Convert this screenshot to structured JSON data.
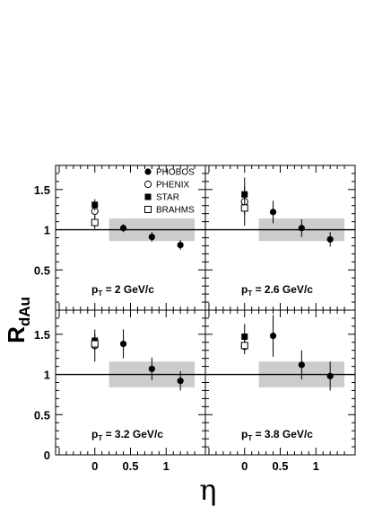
{
  "chart_data": {
    "type": "scatter",
    "ylabel": "R",
    "ylabel_sub": "dAu",
    "xlabel": "η",
    "xlim": [
      -0.55,
      1.55
    ],
    "ylim": [
      0,
      1.8
    ],
    "x_tick_labels": [
      "0",
      "0.5",
      "1"
    ],
    "y_tick_labels": [
      "0.5",
      "1",
      "1.5"
    ],
    "reference_line_y": 1,
    "legend": {
      "placement": "top-left panel, upper-right",
      "entries": [
        {
          "label": "PHOBOS",
          "marker": "filled-circle"
        },
        {
          "label": "PHENIX",
          "marker": "open-circle"
        },
        {
          "label": "STAR",
          "marker": "filled-square"
        },
        {
          "label": "BRAHMS",
          "marker": "open-square"
        }
      ]
    },
    "panels": [
      {
        "label_p": "p",
        "label_sub": "T",
        "label_rest": " = 2 GeV/c",
        "band": {
          "x": [
            0.2,
            1.4
          ],
          "y": [
            0.86,
            1.14
          ]
        },
        "series": [
          {
            "name": "PHOBOS",
            "points": [
              {
                "x": 0.4,
                "y": 1.02,
                "err": 0.05
              },
              {
                "x": 0.8,
                "y": 0.91,
                "err": 0.06
              },
              {
                "x": 1.2,
                "y": 0.81,
                "err": 0.06
              }
            ]
          },
          {
            "name": "PHENIX",
            "points": [
              {
                "x": 0,
                "y": 1.23,
                "err": 0.08
              }
            ]
          },
          {
            "name": "STAR",
            "points": [
              {
                "x": 0,
                "y": 1.31,
                "err": 0.07
              }
            ]
          },
          {
            "name": "BRAHMS",
            "points": [
              {
                "x": 0,
                "y": 1.09,
                "err": 0.08
              }
            ]
          }
        ]
      },
      {
        "label_p": "p",
        "label_sub": "T",
        "label_rest": " = 2.6 GeV/c",
        "band": {
          "x": [
            0.2,
            1.4
          ],
          "y": [
            0.86,
            1.14
          ]
        },
        "series": [
          {
            "name": "PHOBOS",
            "points": [
              {
                "x": 0.4,
                "y": 1.22,
                "err": 0.14
              },
              {
                "x": 0.8,
                "y": 1.02,
                "err": 0.11
              },
              {
                "x": 1.2,
                "y": 0.88,
                "err": 0.09
              }
            ]
          },
          {
            "name": "PHENIX",
            "points": [
              {
                "x": 0,
                "y": 1.35,
                "err": 0.3
              }
            ]
          },
          {
            "name": "STAR",
            "points": [
              {
                "x": 0,
                "y": 1.44,
                "err": 0.1
              }
            ]
          },
          {
            "name": "BRAHMS",
            "points": [
              {
                "x": 0,
                "y": 1.27,
                "err": 0.08
              }
            ]
          }
        ]
      },
      {
        "label_p": "p",
        "label_sub": "T",
        "label_rest": " = 3.2 GeV/c",
        "band": {
          "x": [
            0.2,
            1.4
          ],
          "y": [
            0.84,
            1.16
          ]
        },
        "series": [
          {
            "name": "PHOBOS",
            "points": [
              {
                "x": 0.4,
                "y": 1.38,
                "err": 0.18
              },
              {
                "x": 0.8,
                "y": 1.07,
                "err": 0.14
              },
              {
                "x": 1.2,
                "y": 0.92,
                "err": 0.12
              }
            ]
          },
          {
            "name": "PHENIX",
            "points": [
              {
                "x": 0,
                "y": 1.36,
                "err": 0.2
              }
            ]
          },
          {
            "name": "STAR",
            "points": [
              {
                "x": 0,
                "y": 1.42,
                "err": 0.08
              }
            ]
          },
          {
            "name": "BRAHMS",
            "points": [
              {
                "x": 0,
                "y": 1.38,
                "err": 0.07
              }
            ]
          }
        ]
      },
      {
        "label_p": "p",
        "label_sub": "T",
        "label_rest": " = 3.8 GeV/c",
        "band": {
          "x": [
            0.2,
            1.4
          ],
          "y": [
            0.84,
            1.16
          ]
        },
        "series": [
          {
            "name": "PHOBOS",
            "points": [
              {
                "x": 0.4,
                "y": 1.48,
                "err": 0.26
              },
              {
                "x": 0.8,
                "y": 1.12,
                "err": 0.18
              },
              {
                "x": 1.2,
                "y": 0.98,
                "err": 0.18
              }
            ]
          },
          {
            "name": "PHENIX",
            "points": [
              {
                "x": 0,
                "y": 1.35,
                "err": 0.1
              }
            ]
          },
          {
            "name": "STAR",
            "points": [
              {
                "x": 0,
                "y": 1.47,
                "err": 0.16
              }
            ]
          },
          {
            "name": "BRAHMS",
            "points": [
              {
                "x": 0,
                "y": 1.36,
                "err": 0.06
              }
            ]
          }
        ]
      }
    ],
    "colors": {
      "points": "#000000",
      "band": "#cccccc",
      "frame": "#000000"
    }
  }
}
